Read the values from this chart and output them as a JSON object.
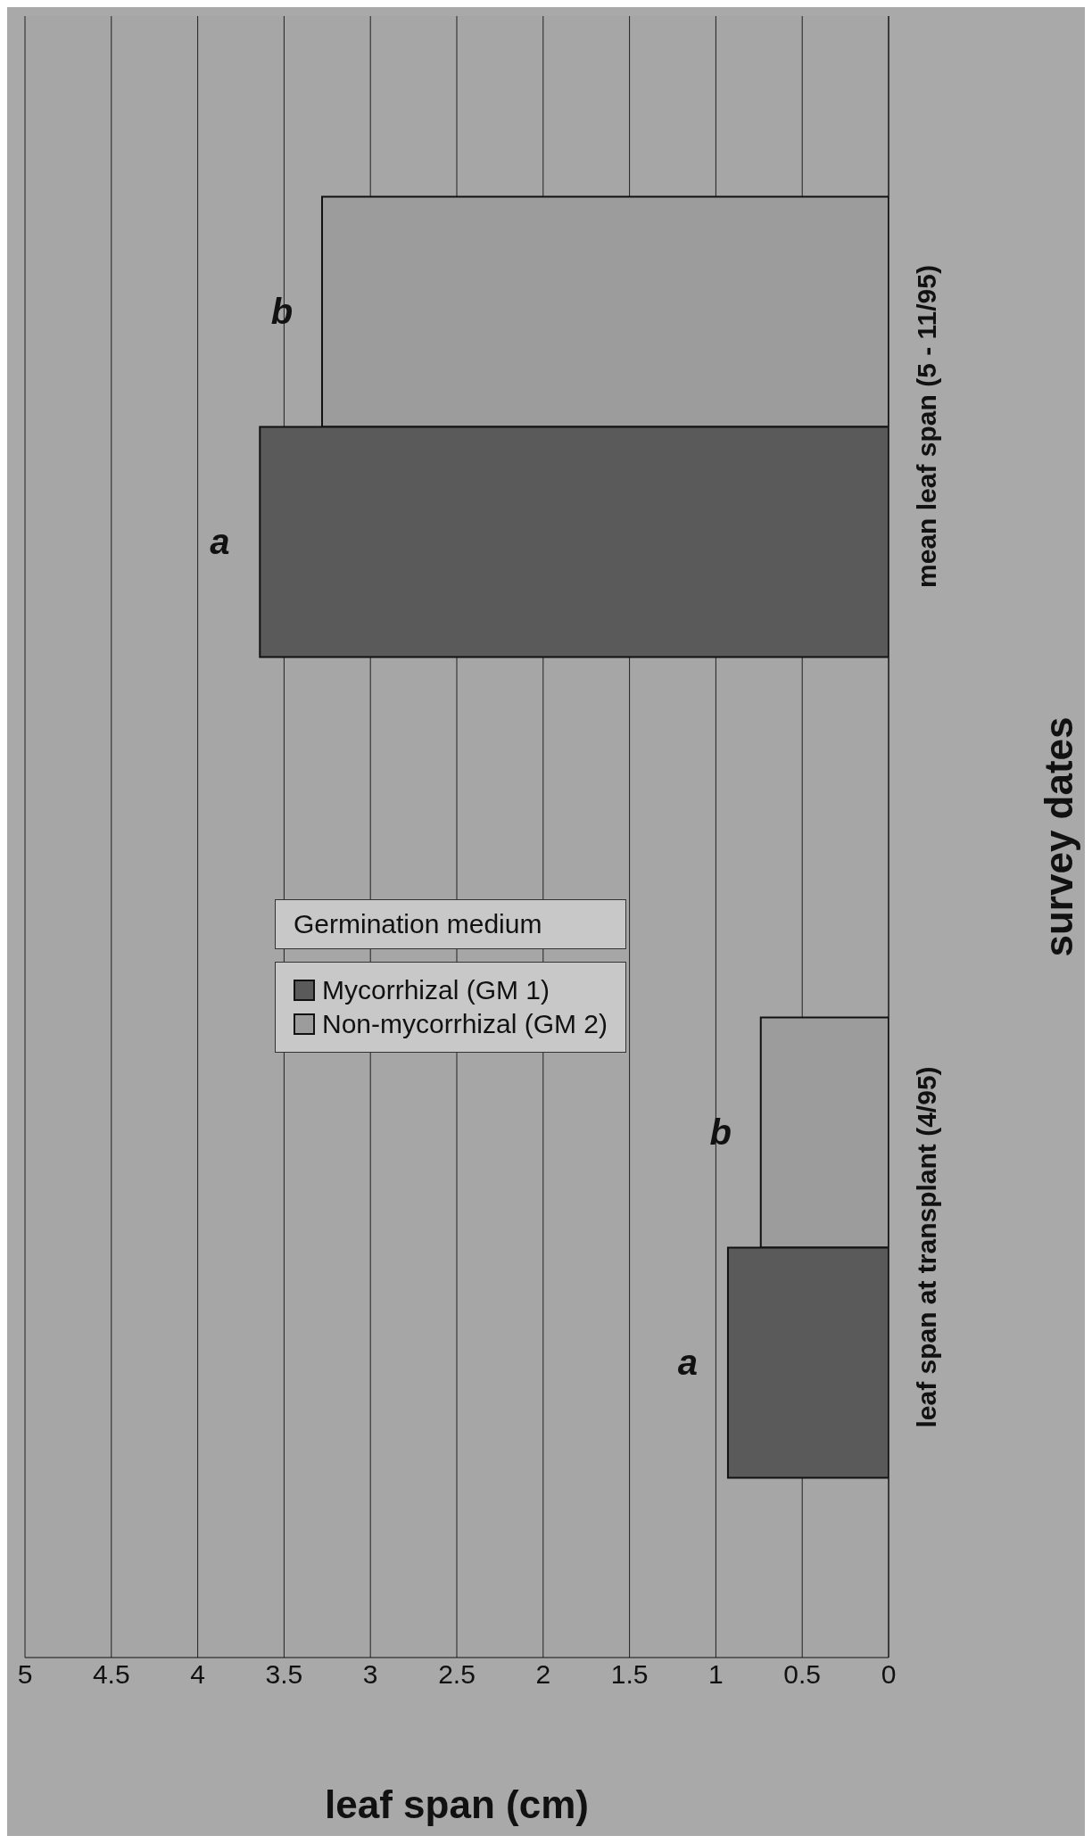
{
  "chart_data": {
    "type": "bar",
    "orientation": "horizontal",
    "categories": [
      "mean leaf span (5 - 11/95)",
      "leaf span at transplant (4/95)"
    ],
    "series": [
      {
        "name": "Mycorrhizal (GM 1)",
        "color": "#5a5a5a",
        "values": [
          3.64,
          0.93
        ]
      },
      {
        "name": "Non-mycorrhizal (GM 2)",
        "color": "#9c9c9c",
        "values": [
          3.28,
          0.74
        ]
      }
    ],
    "xlim": [
      5,
      0
    ],
    "xticks": [
      5,
      4.5,
      4,
      3.5,
      3,
      2.5,
      2,
      1.5,
      1,
      0.5,
      0
    ],
    "xlabel": "leaf span (cm)",
    "ylabel": "survey dates",
    "legend_title": "Germination medium",
    "legend": "center",
    "grid": "x",
    "annotations": [
      {
        "text": "a",
        "x": 0.93,
        "y": "leaf span at transplant (4/95)"
      },
      {
        "text": "b",
        "x": 0.74,
        "y": "leaf span at transplant (4/95)"
      },
      {
        "text": "a",
        "x": 3.64,
        "y": "mean leaf span (5 - 11/95)"
      },
      {
        "text": "b",
        "x": 3.28,
        "y": "mean leaf span (5 - 11/95)"
      }
    ]
  }
}
